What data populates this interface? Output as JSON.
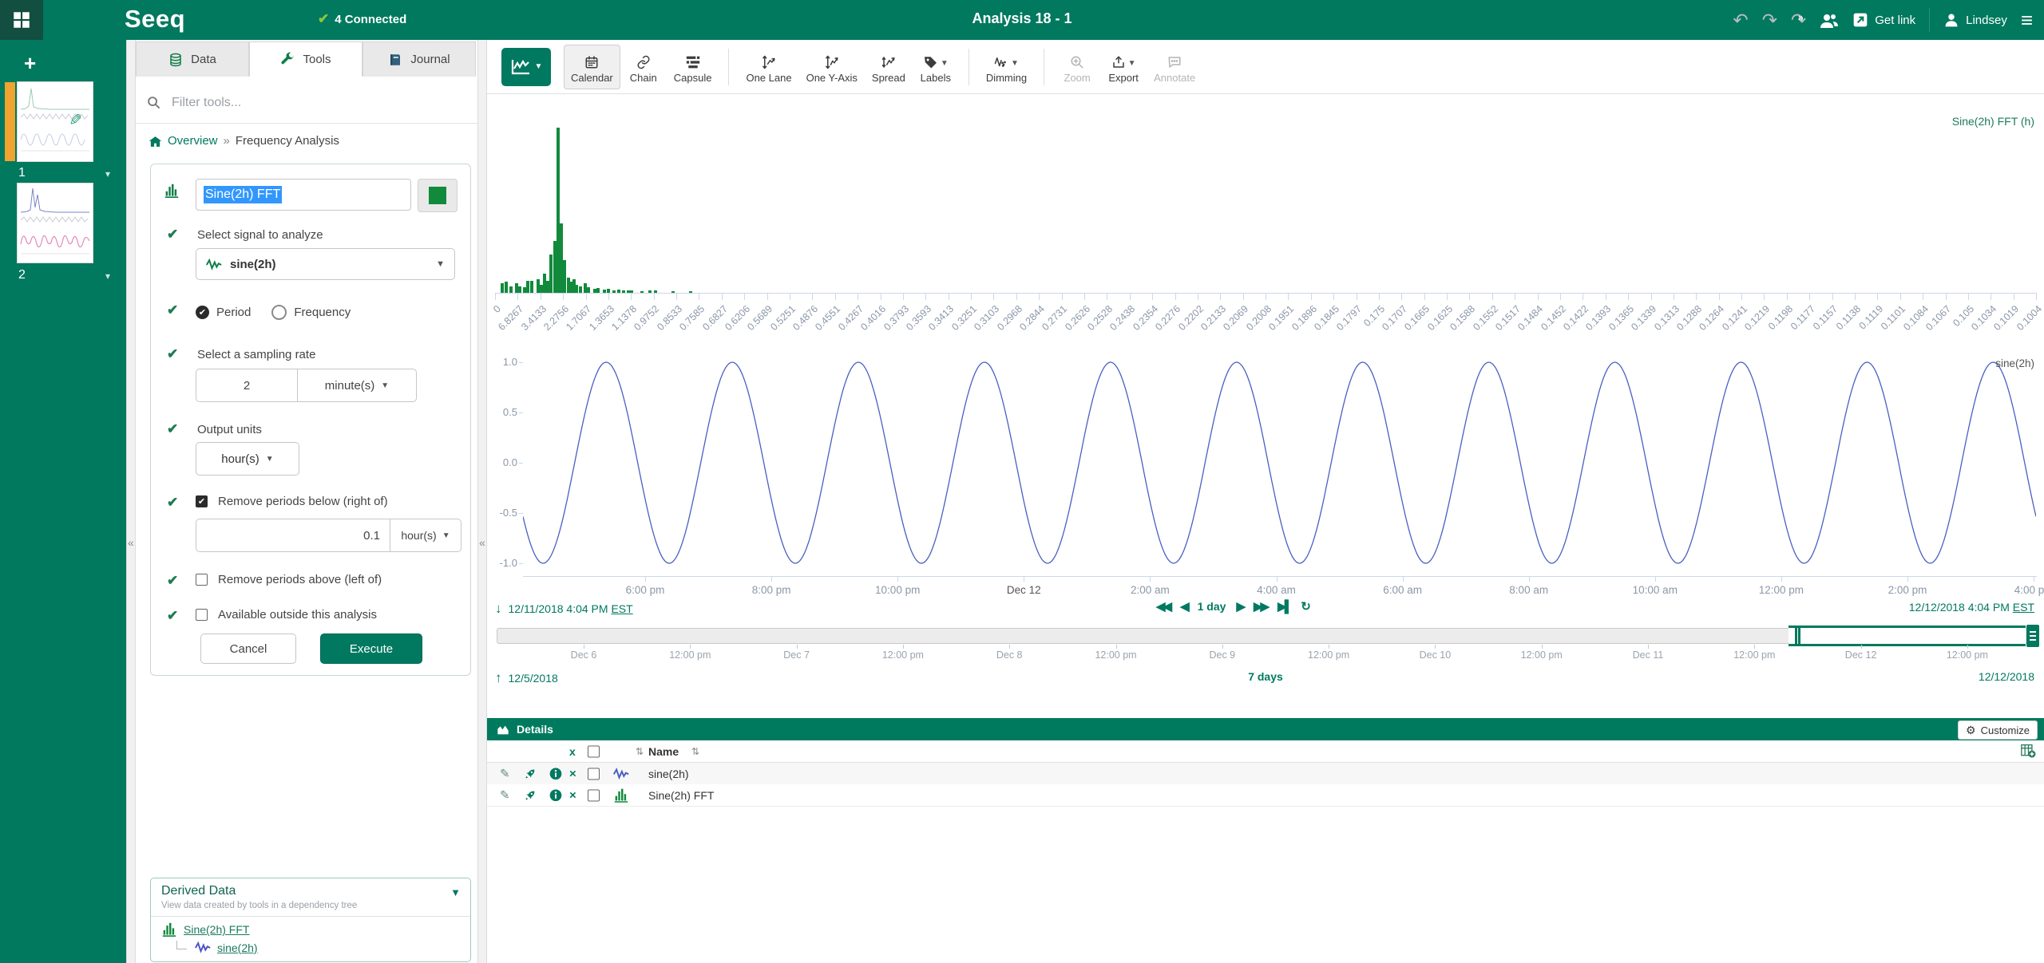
{
  "colors": {
    "brand_green": "#00795e",
    "link_green": "#007960",
    "fft_bar_green": "#118a3c",
    "signal_blue": "#4a5fc0",
    "derived_signal_purple": "#4f52c8",
    "connected_lime": "#8bc53f",
    "axis_text": "#8b97a8",
    "axis_line": "#ccd6eb",
    "active_worksheet_orange": "#f0a32e",
    "text_selection_blue": "#3297fd"
  },
  "topbar": {
    "logo": "Seeq",
    "connected_label": "4 Connected",
    "title": "Analysis 18 - 1",
    "get_link_label": "Get link",
    "user_name": "Lindsey"
  },
  "worksheets": {
    "items": [
      {
        "number": "1",
        "active": true
      },
      {
        "number": "2",
        "active": false
      }
    ]
  },
  "tools_panel": {
    "tabs": [
      {
        "label": "Data",
        "icon": "database-icon",
        "active": false
      },
      {
        "label": "Tools",
        "icon": "wrench-icon",
        "active": true
      },
      {
        "label": "Journal",
        "icon": "journal-icon",
        "active": false
      }
    ],
    "filter_placeholder": "Filter tools...",
    "breadcrumb": {
      "root": "Overview",
      "separator": "»",
      "current": "Frequency Analysis"
    },
    "form": {
      "name_value": "Sine(2h) FFT",
      "signal_label": "Select signal to analyze",
      "signal_value": "sine(2h)",
      "period_label": "Period",
      "frequency_label": "Frequency",
      "period_selected": true,
      "sampling_label": "Select a sampling rate",
      "sampling_value": "2",
      "sampling_unit": "minute(s)",
      "output_label": "Output units",
      "output_unit": "hour(s)",
      "remove_below_label": "Remove periods below (right of)",
      "remove_below_checked": true,
      "remove_below_value": "0.1",
      "remove_below_unit": "hour(s)",
      "remove_above_label": "Remove periods above (left of)",
      "remove_above_checked": false,
      "available_label": "Available outside this analysis",
      "available_checked": false,
      "cancel_label": "Cancel",
      "execute_label": "Execute"
    },
    "derived_data": {
      "title": "Derived Data",
      "subtitle": "View data created by tools in a dependency tree",
      "items": [
        {
          "label": "Sine(2h) FFT",
          "icon": "histogram-icon",
          "child": false
        },
        {
          "label": "sine(2h)",
          "icon": "signal-icon",
          "child": true
        }
      ]
    }
  },
  "view_toolbar": {
    "groups": [
      {
        "items": [
          {
            "label": "Calendar",
            "icon": "calendar-icon",
            "active": true
          },
          {
            "label": "Chain",
            "icon": "chain-icon"
          },
          {
            "label": "Capsule",
            "icon": "capsule-icon"
          }
        ]
      },
      {
        "items": [
          {
            "label": "One Lane",
            "icon": "one-lane-icon"
          },
          {
            "label": "One Y-Axis",
            "icon": "one-yaxis-icon"
          },
          {
            "label": "Spread",
            "icon": "spread-icon"
          },
          {
            "label": "Labels",
            "icon": "labels-icon",
            "caret": true
          }
        ]
      },
      {
        "items": [
          {
            "label": "Dimming",
            "icon": "dimming-icon",
            "caret": true
          }
        ]
      },
      {
        "items": [
          {
            "label": "Zoom",
            "icon": "zoom-icon",
            "disabled": true
          },
          {
            "label": "Export",
            "icon": "export-icon",
            "caret": true
          },
          {
            "label": "Annotate",
            "icon": "annotate-icon",
            "disabled": true
          }
        ]
      }
    ]
  },
  "chart_data": [
    {
      "type": "bar",
      "name": "Sine(2h) FFT",
      "legend": "Sine(2h) FFT (h)",
      "x_axis": "signal period in hour(s), descending",
      "color": "#118a3c",
      "categories": [
        "0",
        "6.8267",
        "3.4133",
        "2.2756",
        "1.7067",
        "1.3653",
        "1.1378",
        "0.9752",
        "0.8533",
        "0.7585",
        "0.6827",
        "0.6206",
        "0.5689",
        "0.5251",
        "0.4876",
        "0.4551",
        "0.4267",
        "0.4016",
        "0.3793",
        "0.3593",
        "0.3413",
        "0.3251",
        "0.3103",
        "0.2968",
        "0.2844",
        "0.2731",
        "0.2626",
        "0.2528",
        "0.2438",
        "0.2354",
        "0.2276",
        "0.2202",
        "0.2133",
        "0.2069",
        "0.2008",
        "0.1951",
        "0.1896",
        "0.1845",
        "0.1797",
        "0.175",
        "0.1707",
        "0.1665",
        "0.1625",
        "0.1588",
        "0.1552",
        "0.1517",
        "0.1484",
        "0.1452",
        "0.1422",
        "0.1393",
        "0.1365",
        "0.1339",
        "0.1313",
        "0.1288",
        "0.1264",
        "0.1241",
        "0.1219",
        "0.1198",
        "0.1177",
        "0.1157",
        "0.1138",
        "0.1119",
        "0.1101",
        "0.1084",
        "0.1067",
        "0.105",
        "0.1034",
        "0.1019",
        "0.1004"
      ],
      "bars": [
        {
          "x": 0.0038,
          "h": 0.058
        },
        {
          "x": 0.0061,
          "h": 0.066
        },
        {
          "x": 0.0095,
          "h": 0.041
        },
        {
          "x": 0.013,
          "h": 0.058
        },
        {
          "x": 0.0152,
          "h": 0.041
        },
        {
          "x": 0.0182,
          "h": 0.033
        },
        {
          "x": 0.0204,
          "h": 0.074
        },
        {
          "x": 0.0227,
          "h": 0.074
        },
        {
          "x": 0.0268,
          "h": 0.083
        },
        {
          "x": 0.0291,
          "h": 0.05
        },
        {
          "x": 0.0313,
          "h": 0.116
        },
        {
          "x": 0.0334,
          "h": 0.074
        },
        {
          "x": 0.0355,
          "h": 0.231
        },
        {
          "x": 0.0377,
          "h": 0.314
        },
        {
          "x": 0.04,
          "h": 1.0
        },
        {
          "x": 0.0421,
          "h": 0.42
        },
        {
          "x": 0.0443,
          "h": 0.198
        },
        {
          "x": 0.0466,
          "h": 0.091
        },
        {
          "x": 0.0487,
          "h": 0.066
        },
        {
          "x": 0.0504,
          "h": 0.083
        },
        {
          "x": 0.0521,
          "h": 0.05
        },
        {
          "x": 0.0545,
          "h": 0.041
        },
        {
          "x": 0.0578,
          "h": 0.058
        },
        {
          "x": 0.0599,
          "h": 0.033
        },
        {
          "x": 0.0637,
          "h": 0.025
        },
        {
          "x": 0.066,
          "h": 0.03
        },
        {
          "x": 0.0701,
          "h": 0.02
        },
        {
          "x": 0.0729,
          "h": 0.025
        },
        {
          "x": 0.0764,
          "h": 0.017
        },
        {
          "x": 0.0795,
          "h": 0.02
        },
        {
          "x": 0.0824,
          "h": 0.017
        },
        {
          "x": 0.0855,
          "h": 0.017
        },
        {
          "x": 0.0876,
          "h": 0.013
        },
        {
          "x": 0.0945,
          "h": 0.01
        },
        {
          "x": 0.0997,
          "h": 0.013
        },
        {
          "x": 0.1032,
          "h": 0.017
        },
        {
          "x": 0.115,
          "h": 0.008
        },
        {
          "x": 0.126,
          "h": 0.008
        }
      ]
    },
    {
      "type": "line",
      "name": "sine(2h)",
      "color": "#4a5fc0",
      "ylim": [
        -1,
        1
      ],
      "yticks": [
        "1.0",
        "0.5",
        "0.0",
        "-0.5",
        "-1.0"
      ],
      "xticks": [
        "6:00 pm",
        "8:00 pm",
        "10:00 pm",
        "Dec 12",
        "2:00 am",
        "4:00 am",
        "6:00 am",
        "8:00 am",
        "10:00 am",
        "12:00 pm",
        "2:00 pm",
        "4:00 pm"
      ],
      "x_range": [
        "12/11/2018 4:04 PM EST",
        "12/12/2018 4:04 PM EST"
      ],
      "cycles": 12,
      "amplitude": 1,
      "phase_rad": -2.576
    }
  ],
  "range_bar": {
    "start": "12/11/2018 4:04 PM",
    "start_tz": "EST",
    "step_label": "1 day",
    "end": "12/12/2018 4:04 PM",
    "end_tz": "EST"
  },
  "investigate_bar": {
    "labels": [
      "Dec 6",
      "12:00 pm",
      "Dec 7",
      "12:00 pm",
      "Dec 8",
      "12:00 pm",
      "Dec 9",
      "12:00 pm",
      "Dec 10",
      "12:00 pm",
      "Dec 11",
      "12:00 pm",
      "Dec 12",
      "12:00 pm"
    ],
    "start": "12/5/2018",
    "duration": "7 days",
    "end": "12/12/2018"
  },
  "details_panel": {
    "title": "Details",
    "customize_label": "Customize",
    "remove_column": "x",
    "name_column": "Name",
    "rows": [
      {
        "name": "sine(2h)",
        "icon": "signal-icon",
        "color": "#4a5fc0"
      },
      {
        "name": "Sine(2h) FFT",
        "icon": "histogram-icon",
        "color": "#118a3c"
      }
    ]
  }
}
